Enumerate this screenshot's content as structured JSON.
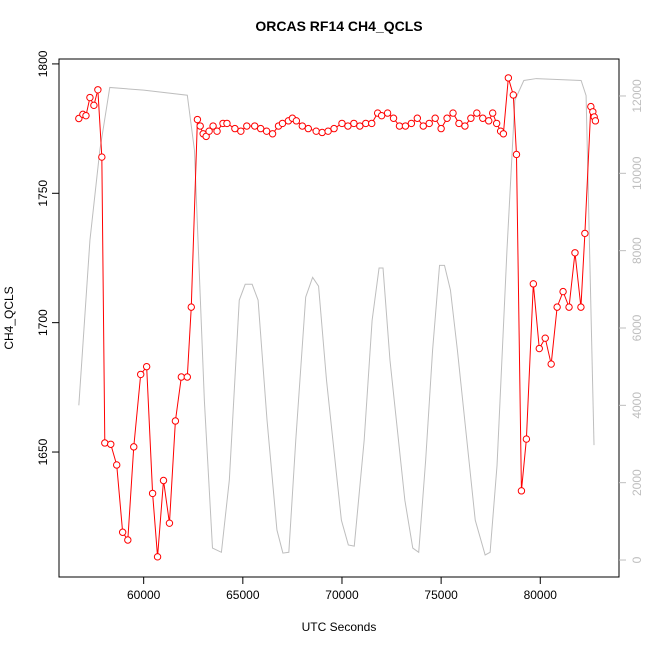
{
  "chart_data": {
    "type": "line",
    "title": "ORCAS RF14 CH4_QCLS",
    "x_label": "UTC Seconds",
    "y_label": "CH4_QCLS",
    "xlim": [
      55730,
      83970
    ],
    "xticks": [
      60000,
      65000,
      70000,
      75000,
      80000
    ],
    "ylim": [
      1601.7,
      1801.9
    ],
    "yticks": [
      1650,
      1700,
      1750,
      1800
    ],
    "y2lim": [
      -439,
      12956
    ],
    "y2ticks": [
      0,
      2000,
      4000,
      6000,
      8000,
      10000,
      12000
    ],
    "series": [
      {
        "color": "#ff0000",
        "markers": true,
        "x": [
          56730,
          56935,
          57090,
          57290,
          57490,
          57690,
          57890,
          58040,
          58340,
          58640,
          58940,
          59200,
          59500,
          59850,
          60150,
          60450,
          60700,
          61000,
          61300,
          61600,
          61900,
          62200,
          62400,
          62710,
          62850,
          63000,
          63150,
          63300,
          63500,
          63700,
          64000,
          64200,
          64600,
          64900,
          65200,
          65600,
          65900,
          66200,
          66500,
          66800,
          67000,
          67300,
          67500,
          67700,
          68000,
          68300,
          68700,
          69000,
          69300,
          69600,
          70000,
          70300,
          70600,
          70900,
          71200,
          71500,
          71800,
          72000,
          72300,
          72600,
          72900,
          73200,
          73500,
          73800,
          74100,
          74400,
          74700,
          75000,
          75300,
          75600,
          75900,
          76200,
          76500,
          76800,
          77100,
          77400,
          77600,
          77800,
          78000,
          78140,
          78390,
          78640,
          78800,
          79050,
          79300,
          79650,
          79950,
          80250,
          80550,
          80850,
          81150,
          81450,
          81750,
          82050,
          82250,
          82550,
          82650,
          82720,
          82780
        ],
        "values": [
          1778.9,
          1780.5,
          1780,
          1787,
          1784,
          1790,
          1764,
          1653.5,
          1653,
          1645,
          1619,
          1616,
          1652,
          1680,
          1683,
          1634,
          1609.5,
          1639,
          1622.5,
          1662,
          1679,
          1679,
          1706,
          1778.5,
          1776,
          1773,
          1772,
          1774,
          1776,
          1774,
          1777,
          1777,
          1775,
          1774,
          1776,
          1776,
          1775,
          1774,
          1773,
          1776,
          1777,
          1778,
          1779,
          1778,
          1776,
          1775,
          1774,
          1773.5,
          1774,
          1775,
          1777,
          1776,
          1777,
          1776,
          1777,
          1777,
          1781,
          1780,
          1781,
          1779,
          1776,
          1776,
          1777,
          1779,
          1776,
          1777,
          1779,
          1775,
          1779,
          1781,
          1777,
          1776,
          1779,
          1781,
          1779,
          1778,
          1781,
          1777,
          1774,
          1773,
          1794.6,
          1788,
          1765,
          1635,
          1655,
          1715,
          1690,
          1694,
          1684,
          1706,
          1712,
          1706,
          1727,
          1706,
          1734.5,
          1783.5,
          1781.5,
          1779.5,
          1778
        ]
      },
      {
        "color": "#bebebe",
        "axis": "y2",
        "x": [
          56730,
          57290,
          57790,
          58290,
          60000,
          62200,
          62560,
          63060,
          63470,
          63920,
          64320,
          64820,
          65120,
          65470,
          65770,
          66220,
          66720,
          67020,
          67320,
          67670,
          68170,
          68520,
          68820,
          69220,
          69970,
          70320,
          70620,
          71120,
          71520,
          71870,
          72070,
          72420,
          73170,
          73570,
          73870,
          74220,
          74570,
          74920,
          75170,
          75470,
          75820,
          76720,
          77220,
          77470,
          77820,
          78320,
          78720,
          79170,
          79800,
          82060,
          82310,
          82710
        ],
        "values": [
          4000,
          8270,
          10600,
          12220,
          12150,
          12020,
          10600,
          4130,
          310,
          200,
          2070,
          6720,
          7130,
          7130,
          6720,
          3620,
          775,
          180,
          200,
          3100,
          6800,
          7310,
          7080,
          4650,
          1030,
          390,
          360,
          3100,
          6200,
          7550,
          7550,
          5170,
          1550,
          310,
          200,
          2580,
          5430,
          7620,
          7620,
          6980,
          5430,
          1030,
          130,
          200,
          2450,
          8010,
          11890,
          12400,
          12450,
          12400,
          12010,
          2970
        ]
      }
    ]
  }
}
